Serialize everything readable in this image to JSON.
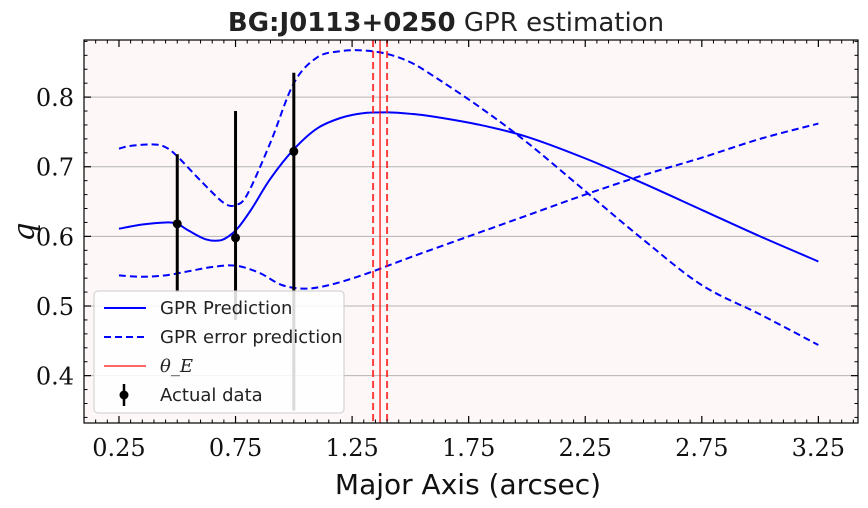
{
  "chart_data": {
    "type": "line",
    "title_bold": "BG:J0113+0250",
    "title_rest": "GPR estimation",
    "xlabel": "Major Axis (arcsec)",
    "ylabel": "q",
    "xlim": [
      0.1,
      3.42
    ],
    "ylim": [
      0.332,
      0.882
    ],
    "xticks": [
      0.25,
      0.75,
      1.25,
      1.75,
      2.25,
      2.75,
      3.25
    ],
    "xtick_labels": [
      "0.25",
      "0.75",
      "1.25",
      "1.75",
      "2.25",
      "2.75",
      "3.25"
    ],
    "yticks": [
      0.4,
      0.5,
      0.6,
      0.7,
      0.8
    ],
    "ytick_labels": [
      "0.4",
      "0.5",
      "0.6",
      "0.7",
      "0.8"
    ],
    "grid": "horizontal",
    "legend_position": "lower-left",
    "series": [
      {
        "name": "GPR Prediction",
        "style": "solid",
        "color": "#0000ff",
        "x": [
          0.25,
          0.35,
          0.45,
          0.5,
          0.55,
          0.62,
          0.68,
          0.72,
          0.76,
          0.82,
          0.9,
          1.0,
          1.1,
          1.2,
          1.3,
          1.4,
          1.5,
          1.6,
          1.8,
          2.0,
          2.25,
          2.5,
          2.75,
          3.0,
          3.25
        ],
        "y": [
          0.611,
          0.617,
          0.62,
          0.618,
          0.608,
          0.596,
          0.594,
          0.6,
          0.612,
          0.64,
          0.683,
          0.725,
          0.755,
          0.77,
          0.777,
          0.778,
          0.776,
          0.772,
          0.76,
          0.743,
          0.712,
          0.676,
          0.638,
          0.6,
          0.564
        ]
      },
      {
        "name": "GPR error prediction",
        "style": "dashed",
        "color": "#0000ff",
        "x": [
          0.25,
          0.3,
          0.4,
          0.45,
          0.5,
          0.6,
          0.7,
          0.75,
          0.8,
          0.9,
          1.0,
          1.1,
          1.2,
          1.3,
          1.4,
          1.5,
          1.6,
          1.8,
          2.0,
          2.25,
          2.5,
          2.75,
          3.0,
          3.25
        ],
        "y": [
          0.726,
          0.73,
          0.732,
          0.728,
          0.715,
          0.68,
          0.648,
          0.645,
          0.66,
          0.735,
          0.82,
          0.857,
          0.866,
          0.867,
          0.862,
          0.85,
          0.83,
          0.785,
          0.735,
          0.665,
          0.595,
          0.53,
          0.488,
          0.444
        ]
      },
      {
        "name": "GPR error prediction (lower)",
        "style": "dashed",
        "color": "#0000ff",
        "x": [
          0.25,
          0.35,
          0.45,
          0.55,
          0.65,
          0.75,
          0.85,
          0.95,
          1.05,
          1.15,
          1.3,
          1.5,
          1.75,
          2.0,
          2.25,
          2.5,
          2.75,
          3.0,
          3.25
        ],
        "y": [
          0.544,
          0.542,
          0.544,
          0.55,
          0.556,
          0.558,
          0.548,
          0.53,
          0.525,
          0.53,
          0.545,
          0.57,
          0.6,
          0.63,
          0.66,
          0.688,
          0.713,
          0.74,
          0.762
        ]
      }
    ],
    "theta_E": {
      "label": "θ_E",
      "color": "#ff0000",
      "value": 1.37,
      "dashed_lines": [
        1.34,
        1.4
      ]
    },
    "actual_data": {
      "label": "Actual data",
      "points": [
        {
          "x": 0.5,
          "y": 0.618,
          "yerr": [
            0.52,
            0.718
          ]
        },
        {
          "x": 0.75,
          "y": 0.598,
          "yerr": [
            0.48,
            0.78
          ]
        },
        {
          "x": 1.0,
          "y": 0.722,
          "yerr": [
            0.35,
            0.835
          ]
        }
      ]
    }
  }
}
